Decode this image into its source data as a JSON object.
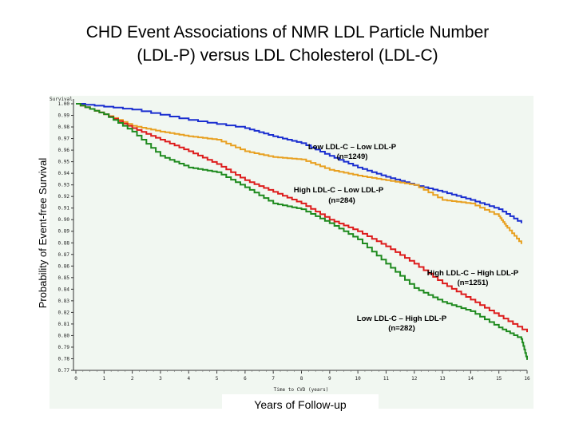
{
  "title_line1": "CHD Event Associations of NMR LDL Particle Number",
  "title_line2": "(LDL-P) versus LDL Cholesterol (LDL-C)",
  "chart_data": {
    "type": "line",
    "step": true,
    "ylabel": "Probability of Event-free Survival",
    "ylabel_small": "Survival",
    "xlabel_small": "Time to CVD (years)",
    "xlabel": "Years of Follow-up",
    "xlim": [
      0,
      16
    ],
    "ylim": [
      0.77,
      1.0
    ],
    "xticks": [
      0,
      1,
      2,
      3,
      4,
      5,
      6,
      7,
      8,
      9,
      10,
      11,
      12,
      13,
      14,
      15,
      16
    ],
    "yticks": [
      "1.00",
      "0.99",
      "0.98",
      "0.97",
      "0.96",
      "0.95",
      "0.94",
      "0.93",
      "0.92",
      "0.91",
      "0.90",
      "0.89",
      "0.88",
      "0.87",
      "0.86",
      "0.85",
      "0.84",
      "0.83",
      "0.82",
      "0.81",
      "0.80",
      "0.79",
      "0.78",
      "0.77"
    ],
    "series": [
      {
        "name": "Low LDL-C – Low LDL-P",
        "n": "(n=1249)",
        "color": "#1a2ed0",
        "x": [
          0,
          2,
          4,
          6,
          7,
          8,
          9,
          10,
          11,
          12,
          13,
          14,
          15,
          15.8
        ],
        "y": [
          1.0,
          0.995,
          0.986,
          0.979,
          0.972,
          0.966,
          0.955,
          0.945,
          0.937,
          0.93,
          0.924,
          0.917,
          0.909,
          0.897
        ]
      },
      {
        "name": "High LDL-C – Low LDL-P",
        "n": "(n=284)",
        "color": "#e8a020",
        "x": [
          0,
          1,
          2,
          3,
          4,
          5,
          6,
          7,
          8,
          9,
          10,
          11,
          12,
          13,
          14,
          15,
          15.3,
          15.8
        ],
        "y": [
          1.0,
          0.991,
          0.981,
          0.976,
          0.972,
          0.969,
          0.959,
          0.954,
          0.952,
          0.943,
          0.938,
          0.934,
          0.93,
          0.917,
          0.914,
          0.903,
          0.893,
          0.879
        ]
      },
      {
        "name": "High LDL-C – High LDL-P",
        "n": "(n=1251)",
        "color": "#dd1c1c",
        "x": [
          0,
          1,
          2,
          3,
          4,
          5,
          6,
          7,
          8,
          9,
          10,
          11,
          12,
          13,
          14,
          15,
          16
        ],
        "y": [
          1.0,
          0.991,
          0.979,
          0.969,
          0.959,
          0.948,
          0.934,
          0.924,
          0.914,
          0.9,
          0.89,
          0.877,
          0.862,
          0.845,
          0.831,
          0.817,
          0.803
        ]
      },
      {
        "name": "Low LDL-C – High LDL-P",
        "n": "(n=282)",
        "color": "#1e8a1e",
        "x": [
          0,
          1,
          2,
          3,
          4,
          5,
          6,
          7,
          8,
          9,
          10,
          11,
          12,
          13,
          14,
          15,
          15.8,
          16
        ],
        "y": [
          1.0,
          0.991,
          0.976,
          0.955,
          0.945,
          0.941,
          0.928,
          0.914,
          0.909,
          0.897,
          0.883,
          0.862,
          0.841,
          0.829,
          0.821,
          0.807,
          0.797,
          0.779
        ]
      }
    ]
  }
}
